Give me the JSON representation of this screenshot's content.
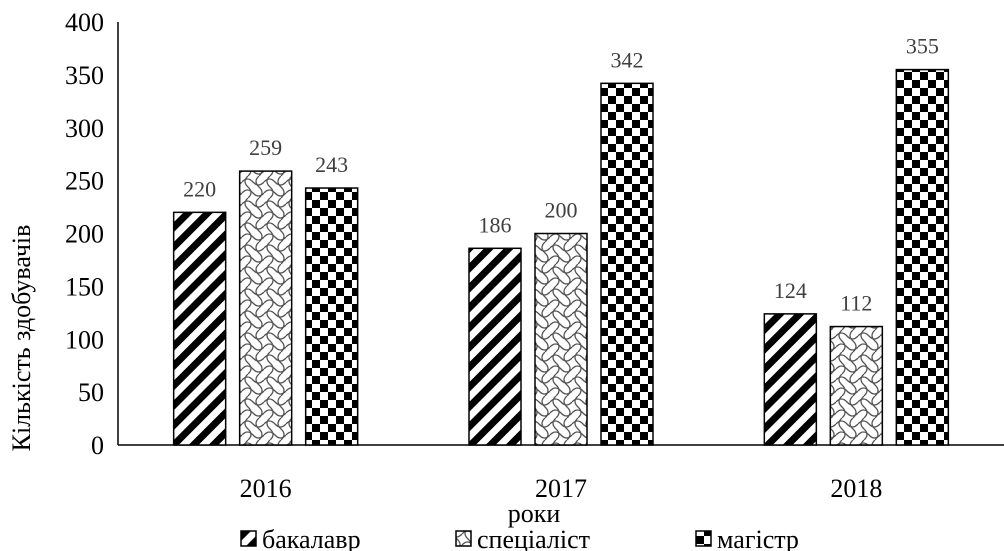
{
  "chart_data": {
    "type": "bar",
    "categories": [
      "2016",
      "2017",
      "2018"
    ],
    "series": [
      {
        "name": "бакалавр",
        "values": [
          220,
          186,
          124
        ],
        "pattern": "diagonal"
      },
      {
        "name": "спеціаліст",
        "values": [
          259,
          200,
          112
        ],
        "pattern": "wave"
      },
      {
        "name": "магістр",
        "values": [
          243,
          342,
          355
        ],
        "pattern": "checker"
      }
    ],
    "data_labels": true,
    "xlabel": "роки",
    "ylabel": "Кількість здобувачів",
    "ylim": [
      0,
      400
    ],
    "yticks": [
      "0",
      "50",
      "100",
      "150",
      "200",
      "250",
      "300",
      "350",
      "400"
    ],
    "grid": false,
    "legend_position": "bottom"
  }
}
